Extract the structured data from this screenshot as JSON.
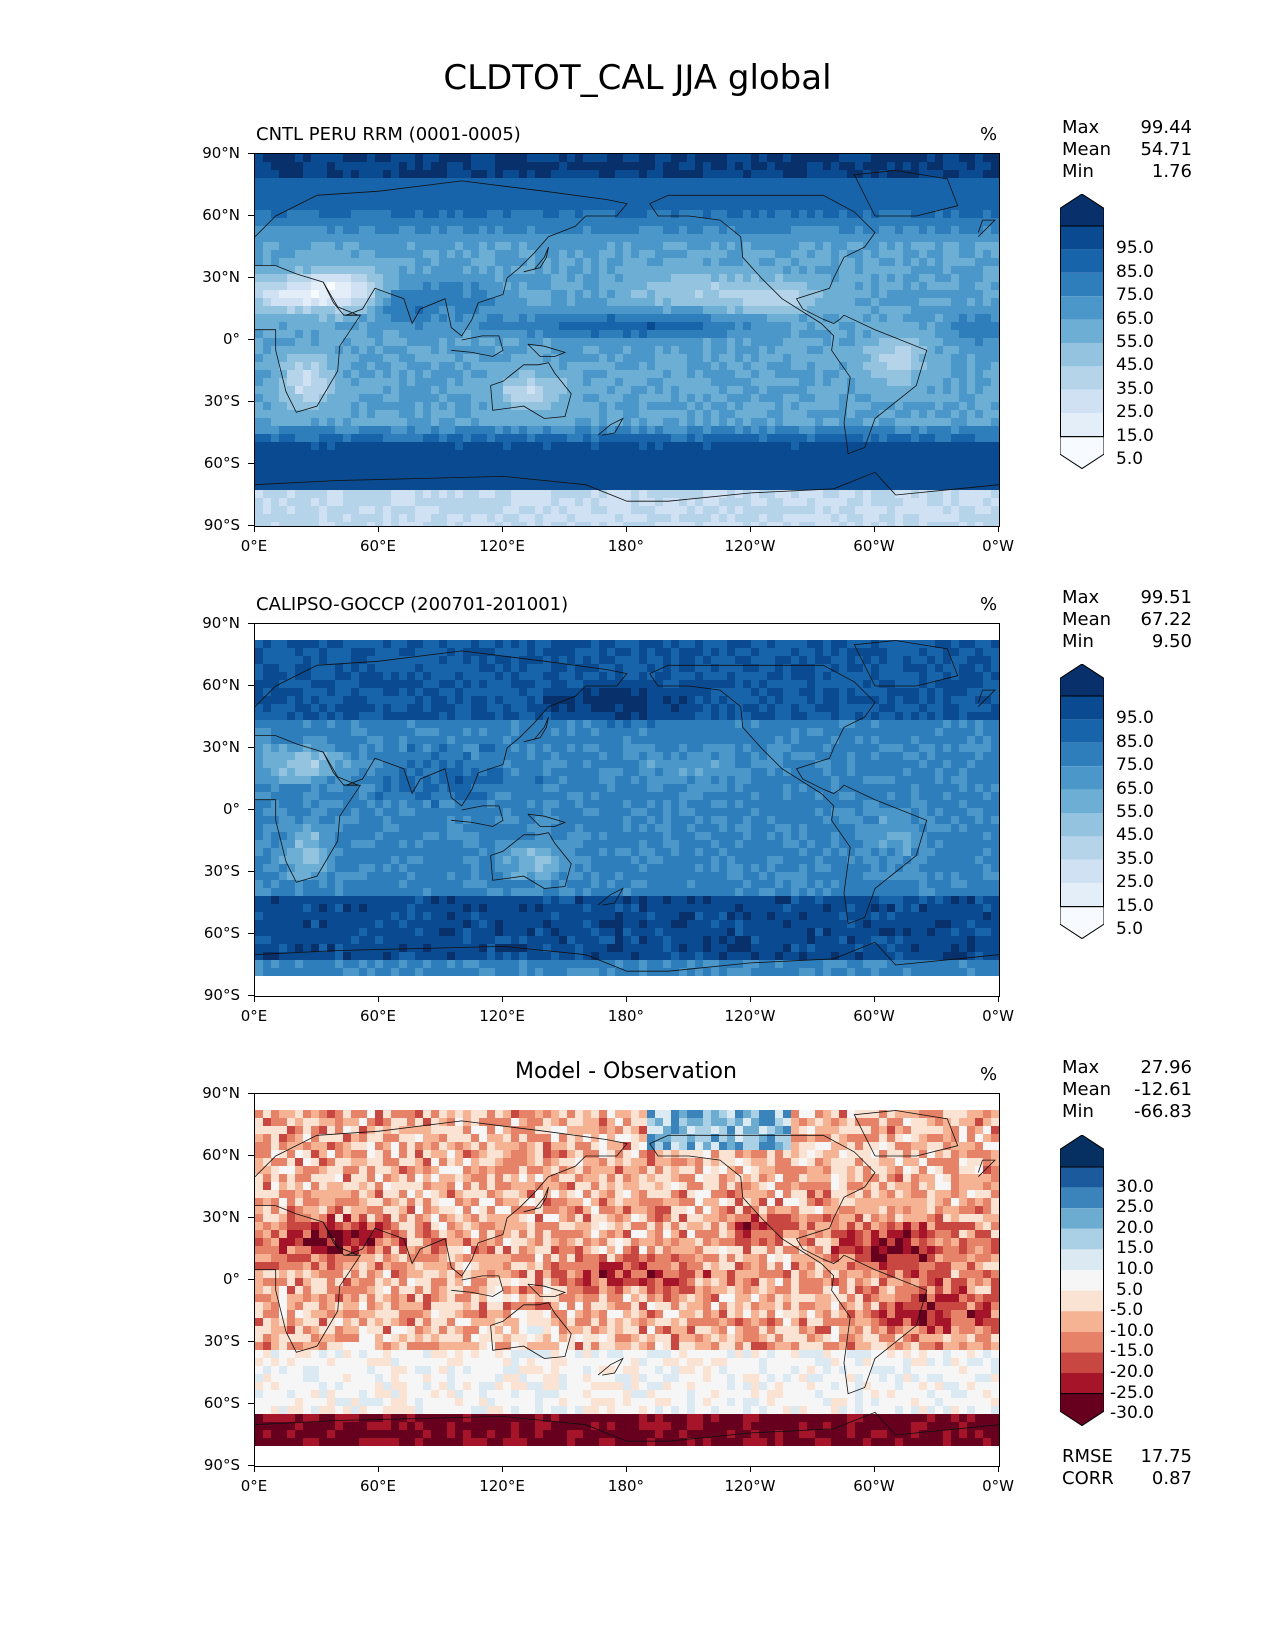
{
  "title": "CLDTOT_CAL JJA global",
  "units": "%",
  "lat_labels": [
    "90°N",
    "60°N",
    "30°N",
    "0°",
    "30°S",
    "60°S",
    "90°S"
  ],
  "lon_labels": [
    "0°E",
    "60°E",
    "120°E",
    "180°",
    "120°W",
    "60°W",
    "0°W"
  ],
  "panels": [
    {
      "title": "CNTL PERU RRM (0001-0005)",
      "stats": {
        "max_label": "Max",
        "max": "99.44",
        "mean_label": "Mean",
        "mean": "54.71",
        "min_label": "Min",
        "min": "1.76"
      },
      "colorbar": {
        "ticks": [
          "95.0",
          "85.0",
          "75.0",
          "65.0",
          "55.0",
          "45.0",
          "35.0",
          "25.0",
          "15.0",
          "5.0"
        ]
      }
    },
    {
      "title": "CALIPSO-GOCCP (200701-201001)",
      "stats": {
        "max_label": "Max",
        "max": "99.51",
        "mean_label": "Mean",
        "mean": "67.22",
        "min_label": "Min",
        "min": "9.50"
      },
      "colorbar": {
        "ticks": [
          "95.0",
          "85.0",
          "75.0",
          "65.0",
          "55.0",
          "45.0",
          "35.0",
          "25.0",
          "15.0",
          "5.0"
        ]
      }
    },
    {
      "title": "Model - Observation",
      "stats": {
        "max_label": "Max",
        "max": "27.96",
        "mean_label": "Mean",
        "mean": "-12.61",
        "min_label": "Min",
        "min": "-66.83"
      },
      "colorbar": {
        "ticks": [
          "30.0",
          "25.0",
          "20.0",
          "15.0",
          "10.0",
          "5.0",
          "-5.0",
          "-10.0",
          "-15.0",
          "-20.0",
          "-25.0",
          "-30.0"
        ]
      },
      "metrics": {
        "rmse_label": "RMSE",
        "rmse": "17.75",
        "corr_label": "CORR",
        "corr": "0.87"
      }
    }
  ],
  "colors": {
    "blues": [
      "#f7fbff",
      "#e3eef9",
      "#cfe1f2",
      "#b5d4e9",
      "#93c3df",
      "#6daed5",
      "#4b97c9",
      "#2f7ebc",
      "#1864aa",
      "#0a4a90",
      "#08306b"
    ],
    "diverging": [
      "#67001f",
      "#a51429",
      "#c94741",
      "#e58267",
      "#f6b393",
      "#fbe3d4",
      "#f6f6f6",
      "#dbeaf2",
      "#a9d0e5",
      "#6bacd0",
      "#3a84bb",
      "#1b5a9c",
      "#053061"
    ]
  }
}
